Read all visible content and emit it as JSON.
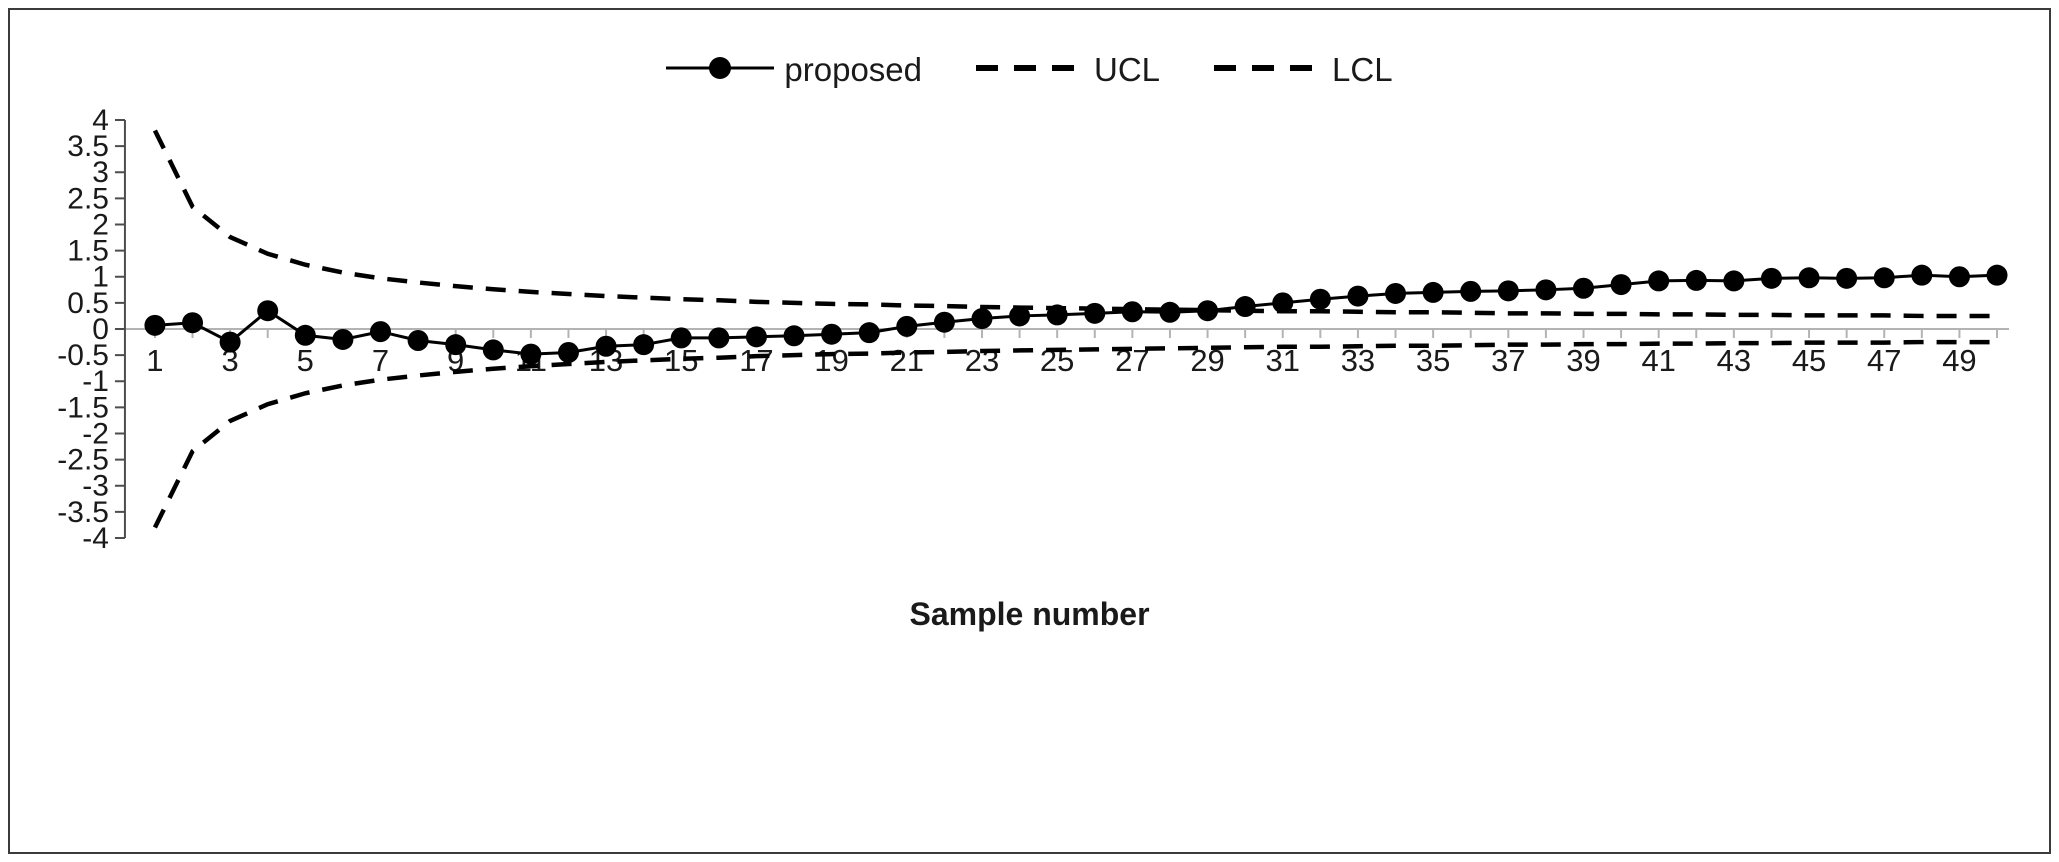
{
  "chart_data": {
    "type": "line",
    "title": "",
    "xlabel": "Sample number",
    "ylabel": "",
    "xlim": [
      0,
      51
    ],
    "ylim": [
      -4,
      4
    ],
    "y_tick_step": 0.5,
    "y_tick_labels": [
      "4",
      "3.5",
      "3",
      "2.5",
      "2",
      "1.5",
      "1",
      "0.5",
      "0",
      "-0.5",
      "-1",
      "-1.5",
      "-2",
      "-2.5",
      "-3",
      "-3.5",
      "-4"
    ],
    "x_tick_labels": [
      1,
      3,
      5,
      7,
      9,
      11,
      13,
      15,
      17,
      19,
      21,
      23,
      25,
      27,
      29,
      31,
      33,
      35,
      37,
      39,
      41,
      43,
      45,
      47,
      49
    ],
    "grid": false,
    "legend_position": "top",
    "x": [
      1,
      2,
      3,
      4,
      5,
      6,
      7,
      8,
      9,
      10,
      11,
      12,
      13,
      14,
      15,
      16,
      17,
      18,
      19,
      20,
      21,
      22,
      23,
      24,
      25,
      26,
      27,
      28,
      29,
      30,
      31,
      32,
      33,
      34,
      35,
      36,
      37,
      38,
      39,
      40,
      41,
      42,
      43,
      44,
      45,
      46,
      47,
      48,
      49,
      50
    ],
    "series": [
      {
        "name": "proposed",
        "style": "solid-marker",
        "values": [
          0.07,
          0.12,
          -0.25,
          0.35,
          -0.12,
          -0.2,
          -0.05,
          -0.22,
          -0.3,
          -0.4,
          -0.48,
          -0.45,
          -0.33,
          -0.3,
          -0.17,
          -0.17,
          -0.15,
          -0.13,
          -0.1,
          -0.07,
          0.05,
          0.13,
          0.2,
          0.25,
          0.27,
          0.3,
          0.33,
          0.32,
          0.35,
          0.43,
          0.5,
          0.57,
          0.63,
          0.68,
          0.7,
          0.72,
          0.73,
          0.75,
          0.78,
          0.85,
          0.92,
          0.93,
          0.92,
          0.97,
          0.98,
          0.97,
          0.98,
          1.03,
          1.0,
          1.03
        ]
      },
      {
        "name": "UCL",
        "style": "dashed",
        "values": [
          3.8,
          2.34,
          1.76,
          1.44,
          1.23,
          1.08,
          0.97,
          0.89,
          0.82,
          0.76,
          0.71,
          0.67,
          0.63,
          0.6,
          0.57,
          0.55,
          0.52,
          0.5,
          0.48,
          0.47,
          0.45,
          0.44,
          0.42,
          0.41,
          0.4,
          0.39,
          0.38,
          0.37,
          0.36,
          0.35,
          0.34,
          0.34,
          0.33,
          0.32,
          0.32,
          0.31,
          0.3,
          0.3,
          0.29,
          0.29,
          0.28,
          0.28,
          0.27,
          0.27,
          0.26,
          0.26,
          0.26,
          0.25,
          0.25,
          0.25
        ]
      },
      {
        "name": "LCL",
        "style": "dashed",
        "values": [
          -3.8,
          -2.34,
          -1.76,
          -1.44,
          -1.23,
          -1.08,
          -0.97,
          -0.89,
          -0.82,
          -0.76,
          -0.71,
          -0.67,
          -0.63,
          -0.6,
          -0.57,
          -0.55,
          -0.52,
          -0.5,
          -0.48,
          -0.47,
          -0.45,
          -0.44,
          -0.42,
          -0.41,
          -0.4,
          -0.39,
          -0.38,
          -0.37,
          -0.36,
          -0.35,
          -0.34,
          -0.34,
          -0.33,
          -0.32,
          -0.32,
          -0.31,
          -0.3,
          -0.3,
          -0.29,
          -0.29,
          -0.28,
          -0.28,
          -0.27,
          -0.27,
          -0.26,
          -0.26,
          -0.26,
          -0.25,
          -0.25,
          -0.25
        ]
      }
    ]
  },
  "colors": {
    "series": "#000000",
    "y_axis": "#4d4d4d",
    "zero_line": "#b3b3b3",
    "x_tick": "#b3b3b3",
    "text": "#1a1a1a"
  }
}
